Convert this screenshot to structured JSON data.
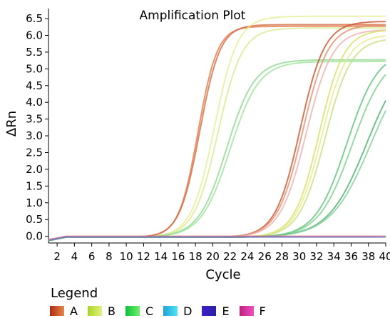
{
  "chart_data": {
    "type": "line",
    "title": "Amplification Plot",
    "xlabel": "Cycle",
    "ylabel": "ΔRn",
    "xlim": [
      1,
      40
    ],
    "ylim": [
      -0.2,
      6.8
    ],
    "x_ticks": [
      2,
      4,
      6,
      8,
      10,
      12,
      14,
      16,
      18,
      20,
      22,
      24,
      26,
      28,
      30,
      32,
      34,
      36,
      38,
      40
    ],
    "y_ticks": [
      "0.0",
      "0.5",
      "1.0",
      "1.5",
      "2.0",
      "2.5",
      "3.0",
      "3.5",
      "4.0",
      "4.5",
      "5.0",
      "5.5",
      "6.0",
      "6.5"
    ],
    "legend_title": "Legend",
    "legend": [
      {
        "name": "A",
        "colors": [
          "#b02a12",
          "#e5894a"
        ]
      },
      {
        "name": "B",
        "colors": [
          "#a8d52a",
          "#e5f07a"
        ]
      },
      {
        "name": "C",
        "colors": [
          "#0fbf3c",
          "#6ff06a"
        ]
      },
      {
        "name": "D",
        "colors": [
          "#1ea2d8",
          "#4fe6f0"
        ]
      },
      {
        "name": "E",
        "colors": [
          "#3a20c8",
          "#2c1fa8"
        ]
      },
      {
        "name": "F",
        "colors": [
          "#c01f80",
          "#f050c0"
        ]
      }
    ],
    "baseline_cycles": [
      1,
      2,
      3,
      4,
      5,
      6,
      7,
      8,
      9,
      10,
      11,
      12,
      13,
      14,
      15,
      16,
      17,
      18,
      19,
      20,
      21,
      22,
      23,
      24,
      25,
      26,
      27,
      28,
      29,
      30,
      31,
      32,
      33,
      34,
      35,
      36,
      37,
      38,
      39,
      40
    ],
    "series": [
      {
        "group": "A",
        "color": "#e07a4a",
        "midpoint": 18.3,
        "slope": 0.9,
        "plateau": 6.3
      },
      {
        "group": "A",
        "color": "#d66a44",
        "midpoint": 18.5,
        "slope": 0.85,
        "plateau": 6.35
      },
      {
        "group": "B",
        "color": "#e6ee96",
        "midpoint": 20.2,
        "slope": 0.75,
        "plateau": 6.6
      },
      {
        "group": "B",
        "color": "#d8eb8e",
        "midpoint": 20.6,
        "slope": 0.72,
        "plateau": 6.25
      },
      {
        "group": "C",
        "color": "#8fd890",
        "midpoint": 21.6,
        "slope": 0.62,
        "plateau": 5.3
      },
      {
        "group": "C",
        "color": "#9fe49c",
        "midpoint": 22.0,
        "slope": 0.6,
        "plateau": 5.25
      },
      {
        "group": "A",
        "color": "#c8552c",
        "midpoint": 30.1,
        "slope": 0.7,
        "plateau": 6.45
      },
      {
        "group": "A",
        "color": "#e39070",
        "midpoint": 30.4,
        "slope": 0.68,
        "plateau": 6.35
      },
      {
        "group": "F",
        "color": "#f0b0b0",
        "midpoint": 30.8,
        "slope": 0.66,
        "plateau": 6.2
      },
      {
        "group": "B",
        "color": "#d8e06a",
        "midpoint": 32.3,
        "slope": 0.7,
        "plateau": 6.2
      },
      {
        "group": "B",
        "color": "#e6ec8e",
        "midpoint": 32.6,
        "slope": 0.68,
        "plateau": 6.05
      },
      {
        "group": "B",
        "color": "#c8e080",
        "midpoint": 33.0,
        "slope": 0.66,
        "plateau": 5.95
      },
      {
        "group": "C",
        "color": "#5fc27a",
        "midpoint": 35.5,
        "slope": 0.55,
        "plateau": 5.6
      },
      {
        "group": "C",
        "color": "#7ccf8e",
        "midpoint": 36.1,
        "slope": 0.52,
        "plateau": 5.5
      },
      {
        "group": "C",
        "color": "#4fb06e",
        "midpoint": 37.8,
        "slope": 0.45,
        "plateau": 5.6
      },
      {
        "group": "C",
        "color": "#86cf9c",
        "midpoint": 38.3,
        "slope": 0.43,
        "plateau": 5.6
      },
      {
        "group": "F",
        "color": "#e07070",
        "flat": 0.0
      },
      {
        "group": "E",
        "color": "#6c6cc8",
        "flat": -0.02
      }
    ]
  }
}
